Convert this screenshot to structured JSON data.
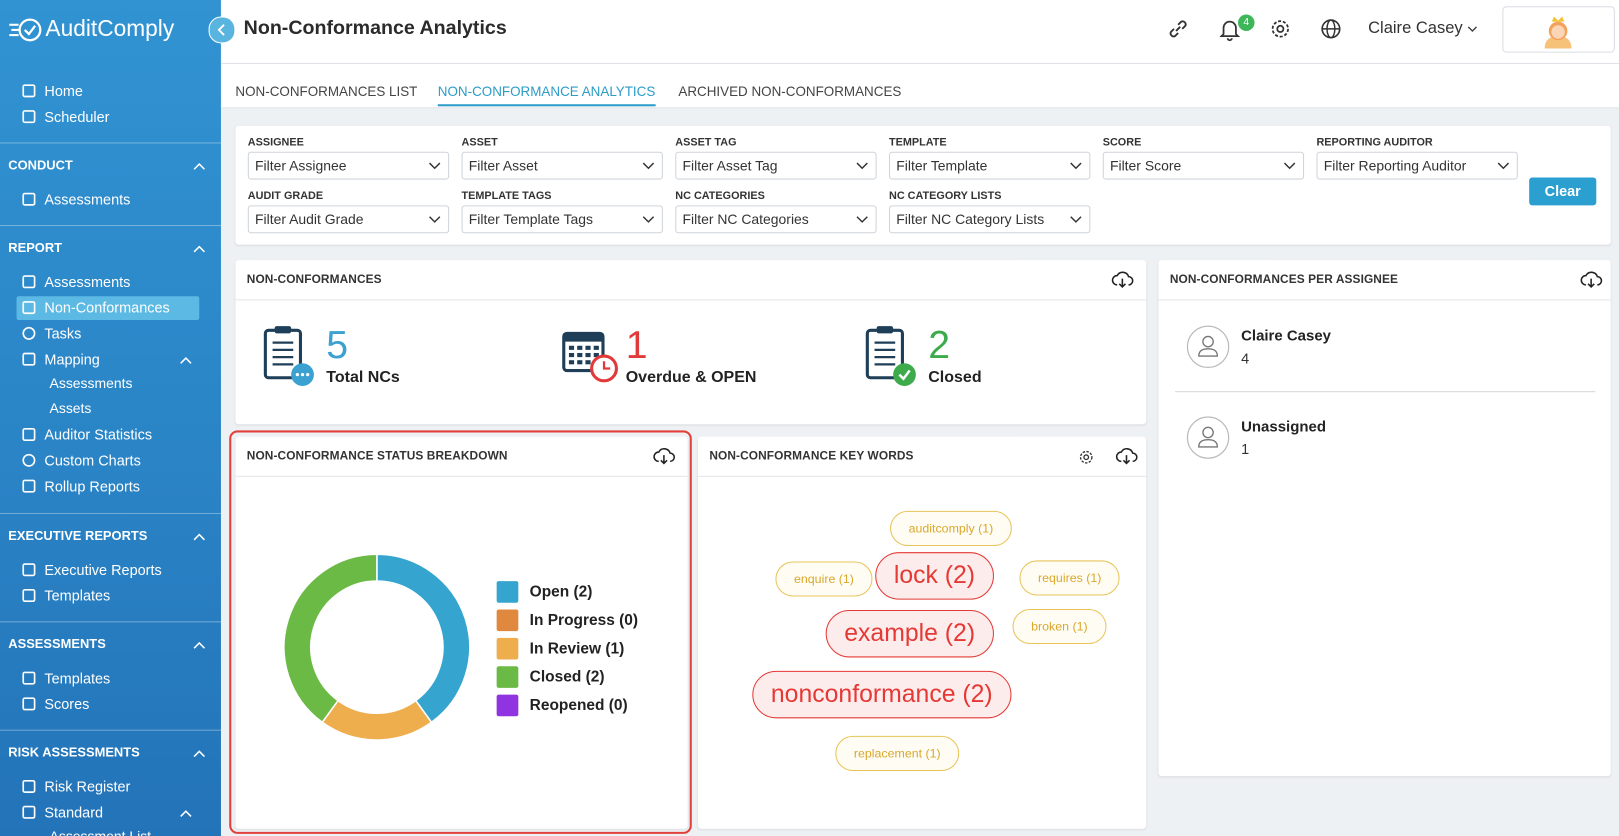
{
  "header": {
    "title": "Non-Conformance Analytics",
    "notification_count": "4",
    "user": "Claire Casey"
  },
  "sidebar": {
    "brand": "AuditComply",
    "nav": [
      "Home",
      "Scheduler"
    ],
    "sections": [
      {
        "title": "CONDUCT",
        "items": [
          "Assessments"
        ]
      },
      {
        "title": "REPORT",
        "items": [
          "Assessments",
          "Non-Conformances",
          "Tasks",
          {
            "label": "Mapping",
            "items": [
              "Assessments",
              "Assets"
            ]
          },
          "Auditor Statistics",
          "Custom Charts",
          "Rollup Reports"
        ]
      },
      {
        "title": "EXECUTIVE REPORTS",
        "items": [
          "Executive Reports",
          "Templates"
        ]
      },
      {
        "title": "ASSESSMENTS",
        "items": [
          "Templates",
          "Scores"
        ]
      },
      {
        "title": "RISK ASSESSMENTS",
        "items": [
          "Risk Register",
          {
            "label": "Standard",
            "items": [
              "Assessment List"
            ]
          }
        ]
      }
    ]
  },
  "tabs": [
    "NON-CONFORMANCES LIST",
    "NON-CONFORMANCE ANALYTICS",
    "ARCHIVED NON-CONFORMANCES"
  ],
  "filters": [
    {
      "label": "ASSIGNEE",
      "placeholder": "Filter Assignee"
    },
    {
      "label": "ASSET",
      "placeholder": "Filter Asset"
    },
    {
      "label": "ASSET TAG",
      "placeholder": "Filter Asset Tag"
    },
    {
      "label": "TEMPLATE",
      "placeholder": "Filter Template"
    },
    {
      "label": "SCORE",
      "placeholder": "Filter Score"
    },
    {
      "label": "REPORTING AUDITOR",
      "placeholder": "Filter Reporting Auditor"
    },
    {
      "label": "AUDIT GRADE",
      "placeholder": "Filter Audit Grade"
    },
    {
      "label": "TEMPLATE TAGS",
      "placeholder": "Filter Template Tags"
    },
    {
      "label": "NC CATEGORIES",
      "placeholder": "Filter NC Categories"
    },
    {
      "label": "NC CATEGORY LISTS",
      "placeholder": "Filter NC Category Lists"
    }
  ],
  "clear_button": "Clear",
  "summary": {
    "title": "NON-CONFORMANCES",
    "stats": [
      {
        "value": "5",
        "label": "Total NCs",
        "color": "#3aa1d0"
      },
      {
        "value": "1",
        "label": "Overdue & OPEN",
        "color": "#e03a3a"
      },
      {
        "value": "2",
        "label": "Closed",
        "color": "#3daa4b"
      }
    ]
  },
  "per_assignee": {
    "title": "NON-CONFORMANCES PER ASSIGNEE",
    "rows": [
      {
        "name": "Claire Casey",
        "count": "4"
      },
      {
        "name": "Unassigned",
        "count": "1"
      }
    ]
  },
  "status_breakdown": {
    "title": "NON-CONFORMANCE STATUS BREAKDOWN",
    "chart_data": {
      "type": "pie",
      "categories": [
        "Open (2)",
        "In Progress (0)",
        "In Review (1)",
        "Closed (2)",
        "Reopened (0)"
      ],
      "values": [
        2,
        0,
        1,
        2,
        0
      ],
      "colors": [
        "#35a5d0",
        "#e0893e",
        "#eeae4e",
        "#6cba46",
        "#8f34e0"
      ]
    }
  },
  "keywords": {
    "title": "NON-CONFORMANCE KEY WORDS",
    "words": [
      {
        "label": "auditcomply (1)",
        "count": 1
      },
      {
        "label": "enquire (1)",
        "count": 1
      },
      {
        "label": "lock (2)",
        "count": 2
      },
      {
        "label": "requires (1)",
        "count": 1
      },
      {
        "label": "example (2)",
        "count": 2
      },
      {
        "label": "broken (1)",
        "count": 1
      },
      {
        "label": "nonconformance (2)",
        "count": 2
      },
      {
        "label": "replacement (1)",
        "count": 1
      }
    ]
  }
}
